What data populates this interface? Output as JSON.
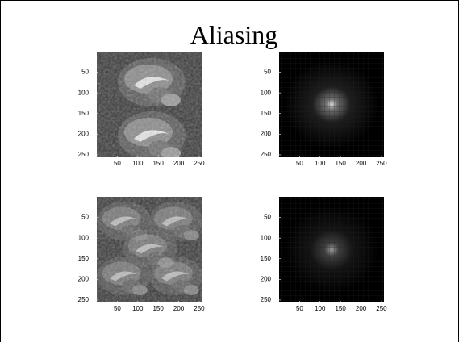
{
  "title": "Aliasing",
  "panels": [
    {
      "xticks": [
        50,
        100,
        150,
        200,
        250
      ],
      "yticks": [
        50,
        100,
        150,
        200,
        250
      ]
    },
    {
      "xticks": [
        50,
        100,
        150,
        200,
        250
      ],
      "yticks": [
        50,
        100,
        150,
        200,
        250
      ]
    },
    {
      "xticks": [
        50,
        100,
        150,
        200,
        250
      ],
      "yticks": [
        50,
        100,
        150,
        200,
        250
      ]
    },
    {
      "xticks": [
        50,
        100,
        150,
        200,
        250
      ],
      "yticks": [
        50,
        100,
        150,
        200,
        250
      ]
    }
  ]
}
